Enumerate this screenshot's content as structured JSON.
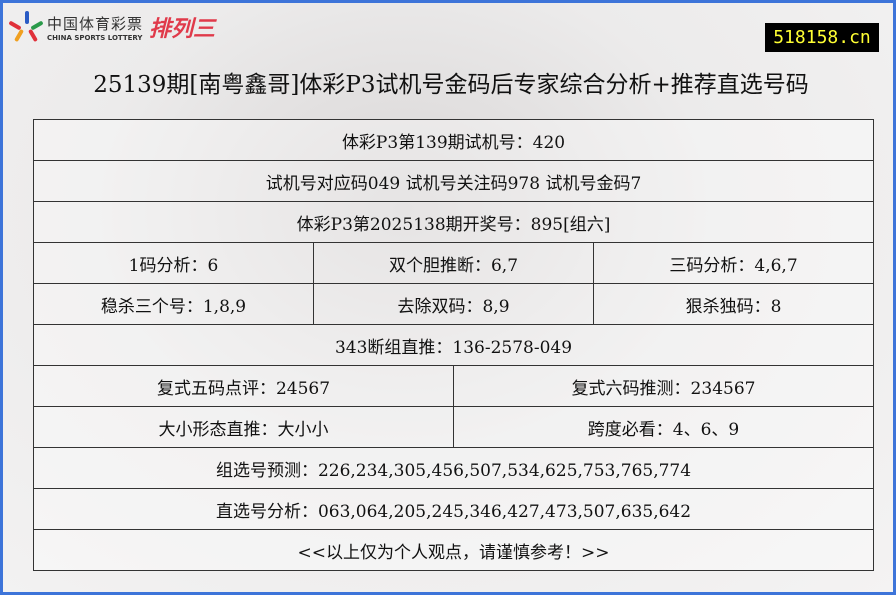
{
  "header": {
    "logo_cn": "中国体育彩票",
    "logo_en": "CHINA SPORTS LOTTERY",
    "logo_game": "排列三",
    "site": "518158.cn",
    "title": "25139期[南粤鑫哥]体彩P3试机号金码后专家综合分析+推荐直选号码"
  },
  "colors": {
    "border": "#3d74d9",
    "site_bg": "#000000",
    "site_text": "#ffff33"
  },
  "rows": {
    "r1": "体彩P3第139期试机号：420",
    "r2": "试机号对应码049 试机号关注码978 试机号金码7",
    "r3": "体彩P3第2025138期开奖号：895[组六]",
    "r4": [
      "1码分析：6",
      "双个胆推断：6,7",
      "三码分析：4,6,7"
    ],
    "r5": [
      "稳杀三个号：1,8,9",
      "去除双码：8,9",
      "狠杀独码：8"
    ],
    "r6": "343断组直推：136-2578-049",
    "r7": [
      "复式五码点评：24567",
      "复式六码推测：234567"
    ],
    "r8": [
      "大小形态直推：大小小",
      "跨度必看：4、6、9"
    ],
    "r9": "组选号预测：226,234,305,456,507,534,625,753,765,774",
    "r10": "直选号分析：063,064,205,245,346,427,473,507,635,642",
    "r11": "<<以上仅为个人观点，请谨慎参考！>>"
  }
}
